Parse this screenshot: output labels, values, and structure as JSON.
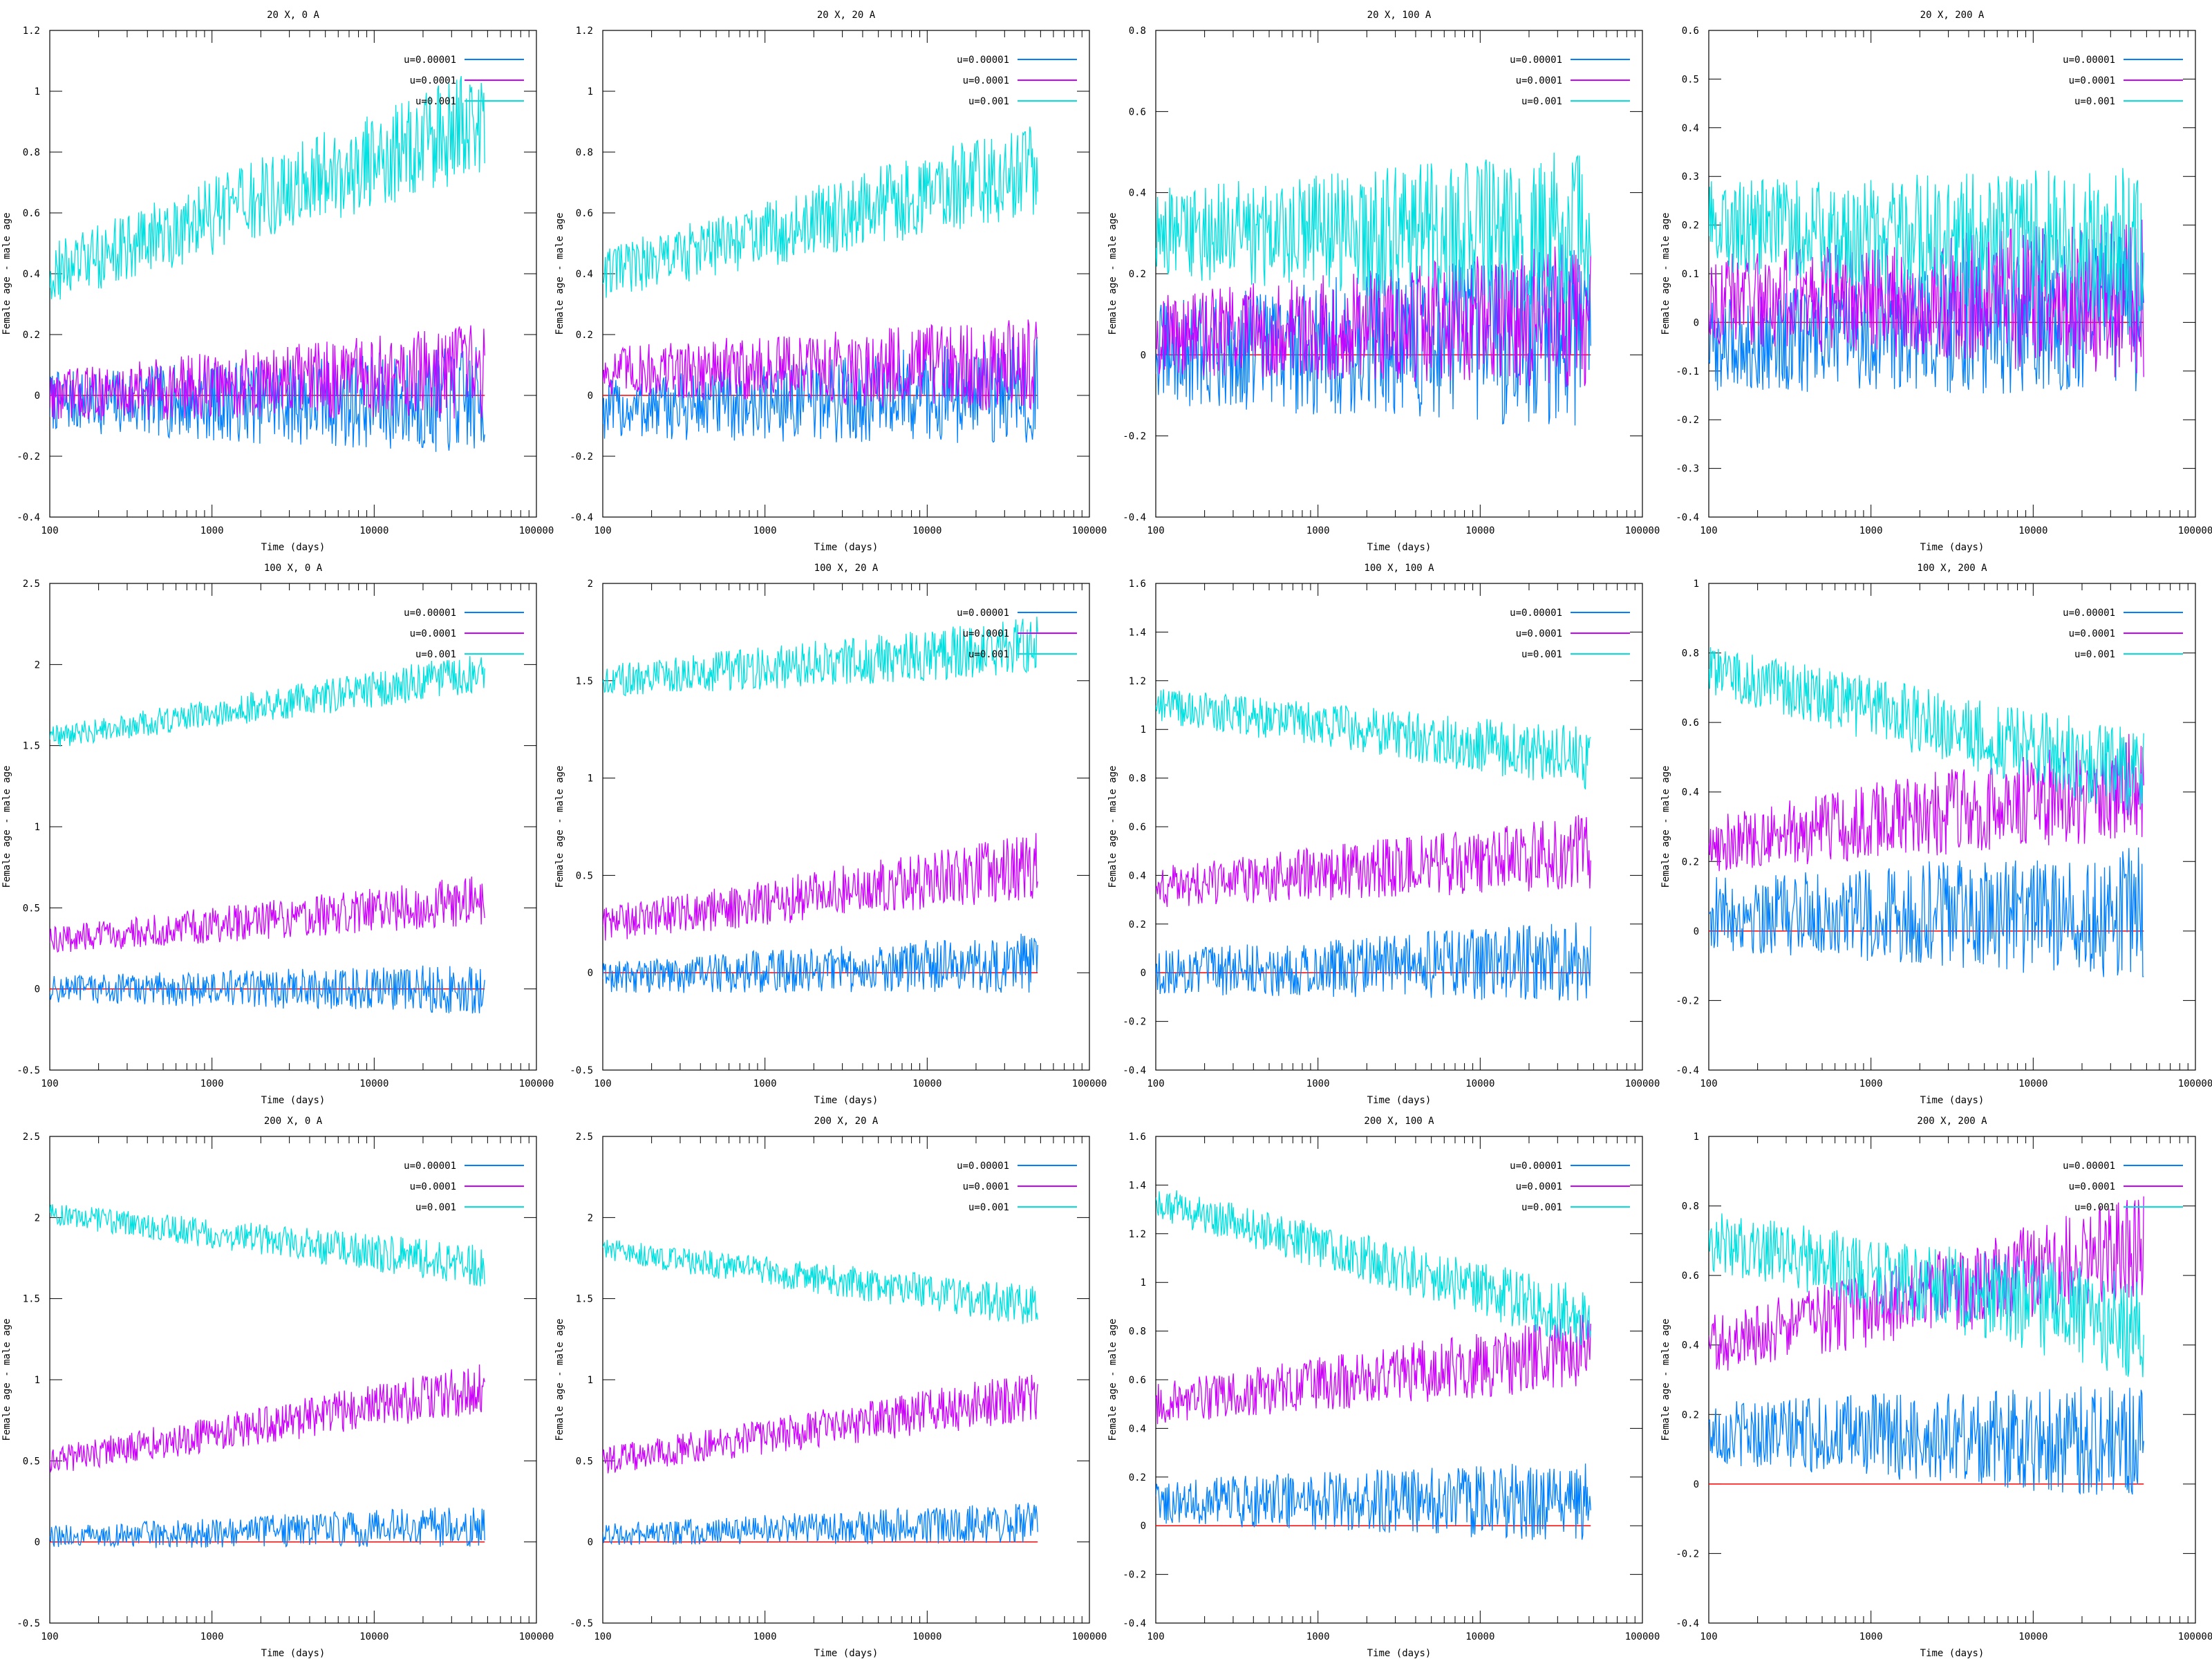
{
  "colors": {
    "u1": "#0080ff",
    "u2": "#cc00ff",
    "u3": "#00e0e0",
    "zero_line": "#ff0000",
    "axis": "#000000"
  },
  "chart_data": [
    {
      "type": "line",
      "title": "20 X, 0 A",
      "xlabel": "Time (days)",
      "ylabel": "Female age - male age",
      "xscale": "log",
      "xlim": [
        100,
        100000
      ],
      "xticks": [
        "100",
        "1000",
        "10000",
        "100000"
      ],
      "ylim": [
        -0.4,
        1.2
      ],
      "yticks": [
        "-0.4",
        "-0.2",
        "0",
        "0.2",
        "0.4",
        "0.6",
        "0.8",
        "1",
        "1.2"
      ],
      "legend": "top-right",
      "series": [
        {
          "name": "u=0.00001",
          "color": "#0080ff",
          "trend_start": -0.02,
          "trend_end": -0.02,
          "noise": 0.14
        },
        {
          "name": "u=0.0001",
          "color": "#cc00ff",
          "trend_start": 0.0,
          "trend_end": 0.08,
          "noise": 0.12
        },
        {
          "name": "u=0.001",
          "color": "#00e0e0",
          "trend_start": 0.4,
          "trend_end": 0.9,
          "noise": 0.14
        }
      ]
    },
    {
      "type": "line",
      "title": "20 X, 20 A",
      "xlabel": "Time (days)",
      "ylabel": "Female age - male age",
      "xscale": "log",
      "xlim": [
        100,
        100000
      ],
      "xticks": [
        "100",
        "1000",
        "10000",
        "100000"
      ],
      "ylim": [
        -0.4,
        1.2
      ],
      "yticks": [
        "-0.4",
        "-0.2",
        "0",
        "0.2",
        "0.4",
        "0.6",
        "0.8",
        "1",
        "1.2"
      ],
      "legend": "top-right",
      "series": [
        {
          "name": "u=0.00001",
          "color": "#0080ff",
          "trend_start": -0.05,
          "trend_end": 0.02,
          "noise": 0.14
        },
        {
          "name": "u=0.0001",
          "color": "#cc00ff",
          "trend_start": 0.08,
          "trend_end": 0.1,
          "noise": 0.12
        },
        {
          "name": "u=0.001",
          "color": "#00e0e0",
          "trend_start": 0.4,
          "trend_end": 0.75,
          "noise": 0.12
        }
      ]
    },
    {
      "type": "line",
      "title": "20 X, 100 A",
      "xlabel": "Time (days)",
      "ylabel": "Female age - male age",
      "xscale": "log",
      "xlim": [
        100,
        100000
      ],
      "xticks": [
        "100",
        "1000",
        "10000",
        "100000"
      ],
      "ylim": [
        -0.4,
        0.8
      ],
      "yticks": [
        "-0.4",
        "-0.2",
        "0",
        "0.2",
        "0.4",
        "0.6",
        "0.8"
      ],
      "legend": "top-right",
      "series": [
        {
          "name": "u=0.00001",
          "color": "#0080ff",
          "trend_start": 0.0,
          "trend_end": 0.05,
          "noise": 0.18
        },
        {
          "name": "u=0.0001",
          "color": "#cc00ff",
          "trend_start": 0.05,
          "trend_end": 0.1,
          "noise": 0.14
        },
        {
          "name": "u=0.001",
          "color": "#00e0e0",
          "trend_start": 0.3,
          "trend_end": 0.3,
          "noise": 0.16
        }
      ]
    },
    {
      "type": "line",
      "title": "20 X, 200 A",
      "xlabel": "Time (days)",
      "ylabel": "Female age - male age",
      "xscale": "log",
      "xlim": [
        100,
        100000
      ],
      "xticks": [
        "100",
        "1000",
        "10000",
        "100000"
      ],
      "ylim": [
        -0.4,
        0.6
      ],
      "yticks": [
        "-0.4",
        "-0.3",
        "-0.2",
        "-0.1",
        "0",
        "0.1",
        "0.2",
        "0.3",
        "0.4",
        "0.5",
        "0.6"
      ],
      "legend": "top-right",
      "series": [
        {
          "name": "u=0.00001",
          "color": "#0080ff",
          "trend_start": -0.05,
          "trend_end": 0.02,
          "noise": 0.13
        },
        {
          "name": "u=0.0001",
          "color": "#cc00ff",
          "trend_start": 0.05,
          "trend_end": 0.05,
          "noise": 0.13
        },
        {
          "name": "u=0.001",
          "color": "#00e0e0",
          "trend_start": 0.2,
          "trend_end": 0.15,
          "noise": 0.13
        }
      ]
    },
    {
      "type": "line",
      "title": "100 X, 0 A",
      "xlabel": "Time (days)",
      "ylabel": "Female age - male age",
      "xscale": "log",
      "xlim": [
        100,
        100000
      ],
      "xticks": [
        "100",
        "1000",
        "10000",
        "100000"
      ],
      "ylim": [
        -0.5,
        2.5
      ],
      "yticks": [
        "-0.5",
        "0",
        "0.5",
        "1",
        "1.5",
        "2",
        "2.5"
      ],
      "legend": "top-right",
      "series": [
        {
          "name": "u=0.00001",
          "color": "#0080ff",
          "trend_start": 0.0,
          "trend_end": 0.0,
          "noise": 0.12
        },
        {
          "name": "u=0.0001",
          "color": "#cc00ff",
          "trend_start": 0.3,
          "trend_end": 0.55,
          "noise": 0.12
        },
        {
          "name": "u=0.001",
          "color": "#00e0e0",
          "trend_start": 1.55,
          "trend_end": 1.95,
          "noise": 0.1
        }
      ]
    },
    {
      "type": "line",
      "title": "100 X, 20 A",
      "xlabel": "Time (days)",
      "ylabel": "Female age - male age",
      "xscale": "log",
      "xlim": [
        100,
        100000
      ],
      "xticks": [
        "100",
        "1000",
        "10000",
        "100000"
      ],
      "ylim": [
        -0.5,
        2
      ],
      "yticks": [
        "-0.5",
        "0",
        "0.5",
        "1",
        "1.5",
        "2"
      ],
      "legend": "top-right",
      "series": [
        {
          "name": "u=0.00001",
          "color": "#0080ff",
          "trend_start": -0.02,
          "trend_end": 0.05,
          "noise": 0.12
        },
        {
          "name": "u=0.0001",
          "color": "#cc00ff",
          "trend_start": 0.25,
          "trend_end": 0.55,
          "noise": 0.13
        },
        {
          "name": "u=0.001",
          "color": "#00e0e0",
          "trend_start": 1.5,
          "trend_end": 1.68,
          "noise": 0.12
        }
      ]
    },
    {
      "type": "line",
      "title": "100 X, 100 A",
      "xlabel": "Time (days)",
      "ylabel": "Female age - male age",
      "xscale": "log",
      "xlim": [
        100,
        100000
      ],
      "xticks": [
        "100",
        "1000",
        "10000",
        "100000"
      ],
      "ylim": [
        -0.4,
        1.6
      ],
      "yticks": [
        "-0.4",
        "-0.2",
        "0",
        "0.2",
        "0.4",
        "0.6",
        "0.8",
        "1",
        "1.2",
        "1.4",
        "1.6"
      ],
      "legend": "top-right",
      "series": [
        {
          "name": "u=0.00001",
          "color": "#0080ff",
          "trend_start": 0.0,
          "trend_end": 0.05,
          "noise": 0.13
        },
        {
          "name": "u=0.0001",
          "color": "#cc00ff",
          "trend_start": 0.35,
          "trend_end": 0.5,
          "noise": 0.12
        },
        {
          "name": "u=0.001",
          "color": "#00e0e0",
          "trend_start": 1.1,
          "trend_end": 0.88,
          "noise": 0.1
        }
      ]
    },
    {
      "type": "line",
      "title": "100 X, 200 A",
      "xlabel": "Time (days)",
      "ylabel": "Female age - male age",
      "xscale": "log",
      "xlim": [
        100,
        100000
      ],
      "xticks": [
        "100",
        "1000",
        "10000",
        "100000"
      ],
      "ylim": [
        -0.4,
        1
      ],
      "yticks": [
        "-0.4",
        "-0.2",
        "0",
        "0.2",
        "0.4",
        "0.6",
        "0.8",
        "1"
      ],
      "legend": "top-right",
      "series": [
        {
          "name": "u=0.00001",
          "color": "#0080ff",
          "trend_start": 0.05,
          "trend_end": 0.05,
          "noise": 0.15
        },
        {
          "name": "u=0.0001",
          "color": "#cc00ff",
          "trend_start": 0.25,
          "trend_end": 0.42,
          "noise": 0.12
        },
        {
          "name": "u=0.001",
          "color": "#00e0e0",
          "trend_start": 0.75,
          "trend_end": 0.45,
          "noise": 0.1
        }
      ]
    },
    {
      "type": "line",
      "title": "200 X, 0 A",
      "xlabel": "Time (days)",
      "ylabel": "Female age - male age",
      "xscale": "log",
      "xlim": [
        100,
        100000
      ],
      "xticks": [
        "100",
        "1000",
        "10000",
        "100000"
      ],
      "ylim": [
        -0.5,
        2.5
      ],
      "yticks": [
        "-0.5",
        "0",
        "0.5",
        "1",
        "1.5",
        "2",
        "2.5"
      ],
      "legend": "top-right",
      "series": [
        {
          "name": "u=0.00001",
          "color": "#0080ff",
          "trend_start": 0.03,
          "trend_end": 0.1,
          "noise": 0.1
        },
        {
          "name": "u=0.0001",
          "color": "#cc00ff",
          "trend_start": 0.5,
          "trend_end": 0.95,
          "noise": 0.12
        },
        {
          "name": "u=0.001",
          "color": "#00e0e0",
          "trend_start": 2.02,
          "trend_end": 1.7,
          "noise": 0.1
        }
      ]
    },
    {
      "type": "line",
      "title": "200 X, 20 A",
      "xlabel": "Time (days)",
      "ylabel": "Female age - male age",
      "xscale": "log",
      "xlim": [
        100,
        100000
      ],
      "xticks": [
        "100",
        "1000",
        "10000",
        "100000"
      ],
      "ylim": [
        -0.5,
        2.5
      ],
      "yticks": [
        "-0.5",
        "0",
        "0.5",
        "1",
        "1.5",
        "2",
        "2.5"
      ],
      "legend": "top-right",
      "series": [
        {
          "name": "u=0.00001",
          "color": "#0080ff",
          "trend_start": 0.05,
          "trend_end": 0.12,
          "noise": 0.1
        },
        {
          "name": "u=0.0001",
          "color": "#cc00ff",
          "trend_start": 0.5,
          "trend_end": 0.9,
          "noise": 0.12
        },
        {
          "name": "u=0.001",
          "color": "#00e0e0",
          "trend_start": 1.8,
          "trend_end": 1.45,
          "noise": 0.1
        }
      ]
    },
    {
      "type": "line",
      "title": "200 X, 100 A",
      "xlabel": "Time (days)",
      "ylabel": "Female age - male age",
      "xscale": "log",
      "xlim": [
        100,
        100000
      ],
      "xticks": [
        "100",
        "1000",
        "10000",
        "100000"
      ],
      "ylim": [
        -0.4,
        1.6
      ],
      "yticks": [
        "-0.4",
        "-0.2",
        "0",
        "0.2",
        "0.4",
        "0.6",
        "0.8",
        "1",
        "1.2",
        "1.4",
        "1.6"
      ],
      "legend": "top-right",
      "series": [
        {
          "name": "u=0.00001",
          "color": "#0080ff",
          "trend_start": 0.1,
          "trend_end": 0.1,
          "noise": 0.13
        },
        {
          "name": "u=0.0001",
          "color": "#cc00ff",
          "trend_start": 0.5,
          "trend_end": 0.72,
          "noise": 0.12
        },
        {
          "name": "u=0.001",
          "color": "#00e0e0",
          "trend_start": 1.33,
          "trend_end": 0.85,
          "noise": 0.1
        }
      ]
    },
    {
      "type": "line",
      "title": "200 X, 200 A",
      "xlabel": "Time (days)",
      "ylabel": "Female age - male age",
      "xscale": "log",
      "xlim": [
        100,
        100000
      ],
      "xticks": [
        "100",
        "1000",
        "10000",
        "100000"
      ],
      "ylim": [
        -0.4,
        1
      ],
      "yticks": [
        "-0.4",
        "-0.2",
        "0",
        "0.2",
        "0.4",
        "0.6",
        "0.8",
        "1"
      ],
      "legend": "top-right",
      "series": [
        {
          "name": "u=0.00001",
          "color": "#0080ff",
          "trend_start": 0.15,
          "trend_end": 0.12,
          "noise": 0.13
        },
        {
          "name": "u=0.0001",
          "color": "#cc00ff",
          "trend_start": 0.4,
          "trend_end": 0.68,
          "noise": 0.12
        },
        {
          "name": "u=0.001",
          "color": "#00e0e0",
          "trend_start": 0.7,
          "trend_end": 0.45,
          "noise": 0.12
        }
      ]
    }
  ]
}
